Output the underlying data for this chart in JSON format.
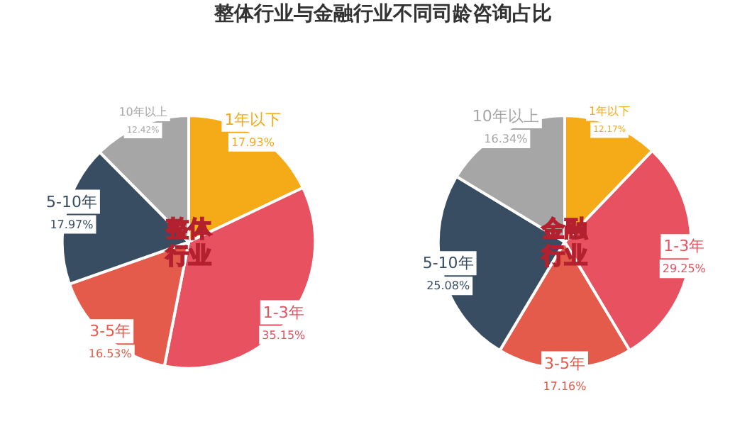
{
  "chart_data": [
    {
      "type": "pie",
      "title": "整体行业与金融行业不同司龄咨询占比",
      "annotations": [
        "整体",
        "行业"
      ],
      "categories": [
        "1年以下",
        "1-3年",
        "3-5年",
        "5-10年",
        "10年以上"
      ],
      "values": [
        17.93,
        35.15,
        16.53,
        17.97,
        12.42
      ],
      "value_labels": [
        "17.93%",
        "35.15%",
        "16.53%",
        "17.97%",
        "12.42%"
      ],
      "colors": [
        "#f5ab17",
        "#e8515f",
        "#e45b4c",
        "#384d61",
        "#a6a6a6"
      ]
    },
    {
      "type": "pie",
      "annotations": [
        "金融",
        "行业"
      ],
      "categories": [
        "1年以下",
        "1-3年",
        "3-5年",
        "5-10年",
        "10年以上"
      ],
      "values": [
        12.17,
        29.25,
        17.16,
        25.08,
        16.34
      ],
      "value_labels": [
        "12.17%",
        "29.25%",
        "17.16%",
        "25.08%",
        "16.34%"
      ],
      "colors": [
        "#f5ab17",
        "#e8515f",
        "#e45b4c",
        "#384d61",
        "#a6a6a6"
      ]
    }
  ]
}
